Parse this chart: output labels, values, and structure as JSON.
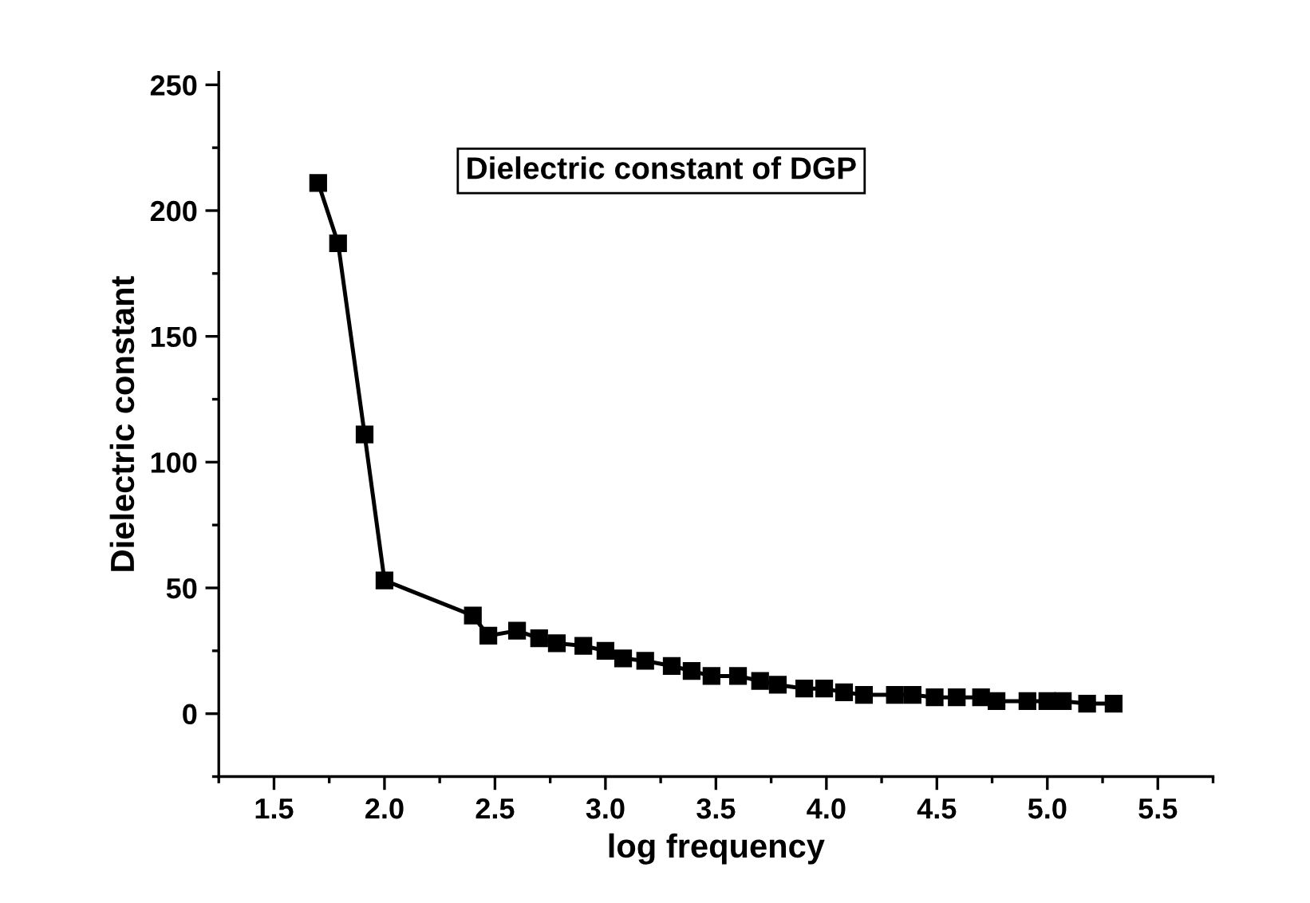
{
  "chart_data": {
    "type": "line",
    "title": "Dielectric constant of DGP",
    "xlabel": "log frequency",
    "ylabel": "Dielectric constant",
    "x": [
      1.7,
      1.79,
      1.91,
      2.0,
      2.4,
      2.47,
      2.6,
      2.7,
      2.78,
      2.9,
      3.0,
      3.08,
      3.18,
      3.3,
      3.39,
      3.48,
      3.6,
      3.7,
      3.78,
      3.9,
      3.99,
      4.08,
      4.17,
      4.31,
      4.39,
      4.49,
      4.59,
      4.7,
      4.77,
      4.91,
      5.0,
      5.07,
      5.18,
      5.3
    ],
    "series": [
      {
        "color": "#000000",
        "values": [
          211,
          187,
          111,
          53,
          39,
          31,
          33,
          30,
          28,
          27,
          25,
          22,
          21,
          19,
          17,
          15,
          15,
          13,
          11.5,
          10,
          10,
          8.5,
          7.5,
          7.5,
          7.5,
          6.5,
          6.5,
          6.5,
          5,
          5,
          5,
          5,
          4,
          4
        ]
      }
    ],
    "xlim": [
      1.25,
      5.75
    ],
    "xticks": [
      1.5,
      {
        "value": 2,
        "label": "2.0"
      },
      2.5,
      {
        "value": 3,
        "label": "3.0"
      },
      3.5,
      {
        "value": 4,
        "label": "4.0"
      },
      4.5,
      {
        "value": 5,
        "label": "5.0"
      },
      5.5
    ],
    "ylim": [
      -25,
      255
    ],
    "yticks": [
      0,
      50,
      100,
      150,
      200,
      250
    ],
    "marker": "square",
    "line_style": "solid",
    "grid": false,
    "legend": false
  }
}
